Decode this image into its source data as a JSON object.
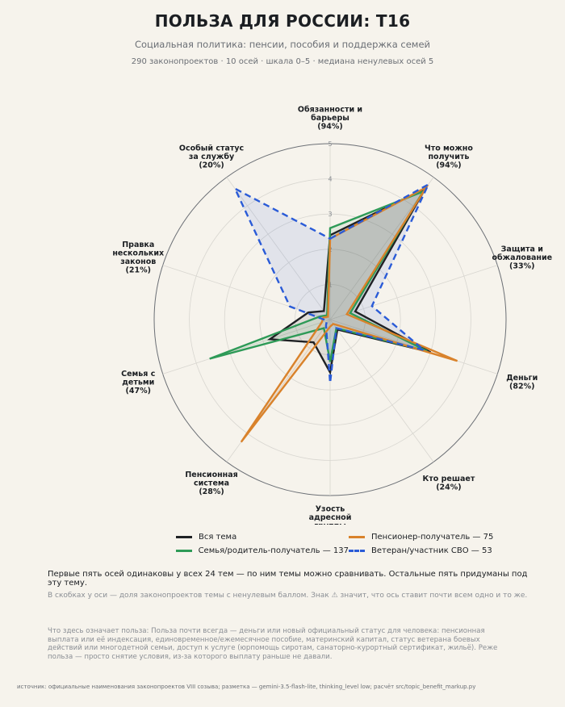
{
  "header": {
    "title": "ПОЛЬЗА ДЛЯ РОССИИ: T16",
    "subtitle": "Социальная политика: пенсии, пособия и поддержка семей",
    "meta": "290 законопроектов · 10 осей · шкала 0–5 · медиана ненулевых осей 5"
  },
  "chart_data": {
    "type": "radar",
    "scale": [
      0,
      5
    ],
    "ticks": [
      "1",
      "2",
      "3",
      "4",
      "5"
    ],
    "axes": [
      [
        "Обязанности и",
        "барьеры",
        "(94%)"
      ],
      [
        "Что можно",
        "получить",
        "(94%)"
      ],
      [
        "Защита и",
        "обжалование",
        "(33%)"
      ],
      [
        "Деньги",
        "(82%)"
      ],
      [
        "Кто решает",
        "(24%)"
      ],
      [
        "Узость",
        "адресной",
        "группы",
        "(53%)"
      ],
      [
        "Пенсионная",
        "система",
        "(28%)"
      ],
      [
        "Семья с",
        "детьми",
        "(47%)"
      ],
      [
        "Правка",
        "нескольких",
        "законов",
        "(21%)"
      ],
      [
        "Особый статус",
        "за службу",
        "(20%)"
      ]
    ],
    "series": [
      {
        "name": "Вся тема",
        "color": "#1f2124",
        "dash": "solid",
        "values": [
          2.4,
          4.6,
          0.75,
          3.0,
          0.35,
          1.5,
          0.8,
          1.8,
          0.65,
          0.3
        ]
      },
      {
        "name": "Семья/родитель-получатель — 137",
        "color": "#2e9a57",
        "dash": "solid",
        "values": [
          2.6,
          4.5,
          0.6,
          2.9,
          0.3,
          1.2,
          0.3,
          3.6,
          0.3,
          0.15
        ]
      },
      {
        "name": "Пенсионер-получатель — 75",
        "color": "#d9822b",
        "dash": "solid",
        "values": [
          2.3,
          4.65,
          0.5,
          3.8,
          0.15,
          0.2,
          4.3,
          0.25,
          0.2,
          0.1
        ]
      },
      {
        "name": "Ветеран/участник СВО — 53",
        "color": "#2a5bd7",
        "dash": "dashed",
        "values": [
          2.3,
          4.75,
          1.25,
          2.8,
          0.3,
          1.8,
          0.2,
          0.1,
          1.2,
          4.6
        ]
      }
    ],
    "legend_position": "bottom-center",
    "grid": true
  },
  "notes": {
    "comparable": "Первые пять осей одинаковы у всех 24 тем — по ним темы можно сравнивать. Остальные пять придуманы под эту тему.",
    "brackets": "В скобках у оси — доля законопроектов темы с ненулевым баллом. Знак ⚠ значит, что ось ставит почти всем одно и то же.",
    "benefit": "Что здесь означает польза: Польза почти всегда — деньги или новый официальный статус для человека: пенсионная выплата или её индексация, единовременное/ежемесячное пособие, материнский капитал, статус ветерана боевых действий или многодетной семьи, доступ к услуге (юрпомощь сиротам, санаторно-курортный сертификат, жильё). Реже польза — просто снятие условия, из-за которого выплату раньше не давали.",
    "source": "источник: официальные наименования законопроектов VIII созыва; разметка — gemini-3.5-flash-lite, thinking_level low; расчёт src/topic_benefit_markup.py"
  }
}
